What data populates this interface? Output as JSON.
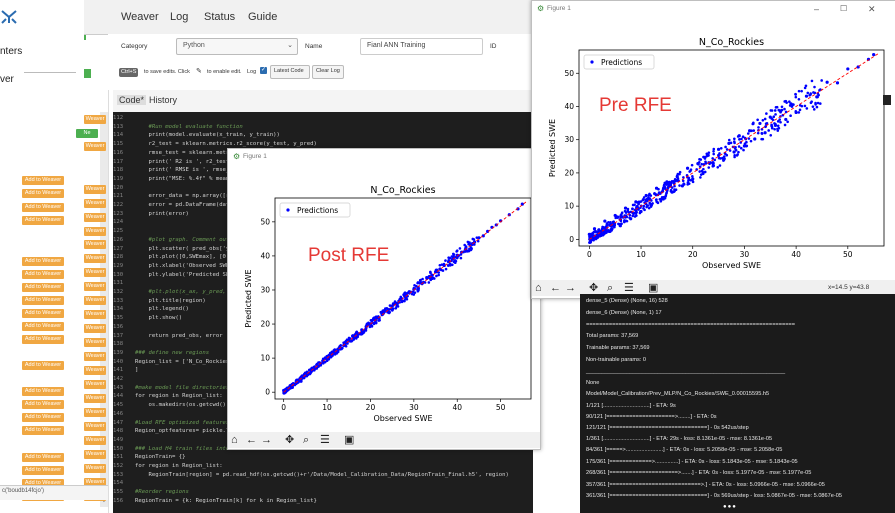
{
  "left_panel": {
    "items": [
      "nters",
      "ver"
    ],
    "status_text": "c('boudb14fcjo')"
  },
  "nav": {
    "items": [
      "Weaver",
      "Log",
      "Status",
      "Guide"
    ]
  },
  "form": {
    "category_label": "Category",
    "category_value": "Python",
    "name_label": "Name",
    "name_value": "Fianl ANN Training",
    "id_label": "ID",
    "shortcut": "Ctrl+S",
    "save_hint": "to save edits. Click",
    "enable_hint": "to enable edit.",
    "log_label": "Log",
    "latest_code_btn": "Latest Code",
    "clear_log_btn": "Clear Log"
  },
  "code_tabs": {
    "code": "Code*",
    "history": "History"
  },
  "code_lines": [
    {
      "n": "112",
      "t": ""
    },
    {
      "n": "113",
      "t": "    #Run model evaluate function",
      "c": "cm"
    },
    {
      "n": "114",
      "t": "    print(model.evaluate(x_train, y_train))"
    },
    {
      "n": "115",
      "t": "    r2_test = sklearn.metrics.r2_score(y_test, y_pred)"
    },
    {
      "n": "116",
      "t": "    rmse_test = sklearn.metrics"
    },
    {
      "n": "117",
      "t": "    print(' R2 is ', r2_test"
    },
    {
      "n": "118",
      "t": "    print(' RMSE is ', rmse_"
    },
    {
      "n": "119",
      "t": "    print(\"MSE: %.4f\" % mean_"
    },
    {
      "n": "120",
      "t": ""
    },
    {
      "n": "121",
      "t": "    error_data = np.array([r"
    },
    {
      "n": "122",
      "t": "    error = pd.DataFrame(data"
    },
    {
      "n": "123",
      "t": "    print(error)"
    },
    {
      "n": "124",
      "t": ""
    },
    {
      "n": "125",
      "t": ""
    },
    {
      "n": "126",
      "t": "    #plot graph. Comment out",
      "c": "cm"
    },
    {
      "n": "127",
      "t": "    plt.scatter( pred_obs['y_"
    },
    {
      "n": "128",
      "t": "    plt.plot([0,SWEmax], [0,"
    },
    {
      "n": "129",
      "t": "    plt.xlabel('Observed SWE')"
    },
    {
      "n": "130",
      "t": "    plt.ylabel('Predicted SWE"
    },
    {
      "n": "131",
      "t": ""
    },
    {
      "n": "132",
      "t": "    #plt.plot(x_ax, y_pred,",
      "c": "cm"
    },
    {
      "n": "133",
      "t": "    plt.title(region)"
    },
    {
      "n": "134",
      "t": "    plt.legend()"
    },
    {
      "n": "135",
      "t": "    plt.show()"
    },
    {
      "n": "136",
      "t": ""
    },
    {
      "n": "137",
      "t": "    return pred_obs, error"
    },
    {
      "n": "138",
      "t": ""
    },
    {
      "n": "139",
      "t": "### define new regions",
      "c": "cm"
    },
    {
      "n": "140",
      "t": "Region_list = ['N_Co_Rockies'"
    },
    {
      "n": "141",
      "t": "]"
    },
    {
      "n": "142",
      "t": ""
    },
    {
      "n": "143",
      "t": "#make model file directories",
      "c": "cm"
    },
    {
      "n": "144",
      "t": "for region in Region_list:"
    },
    {
      "n": "145",
      "t": "    os.makedirs(os.getcwd()"
    },
    {
      "n": "146",
      "t": ""
    },
    {
      "n": "147",
      "t": "#Load RFE optimized features",
      "c": "cm"
    },
    {
      "n": "148",
      "t": "Region_optfeatures= pickle.l"
    },
    {
      "n": "149",
      "t": ""
    },
    {
      "n": "150",
      "t": "### Load H4 train files into",
      "c": "cm"
    },
    {
      "n": "151",
      "t": "RegionTrain= {}"
    },
    {
      "n": "152",
      "t": "for region in Region_list:"
    },
    {
      "n": "153",
      "t": "    RegionTrain[region] = pd.read_hdf(os.getcwd()+r'/Data/Model_Calibration_Data/RegionTrain_Final.h5', region)"
    },
    {
      "n": "154",
      "t": ""
    },
    {
      "n": "155",
      "t": "#Reorder regions",
      "c": "cm"
    },
    {
      "n": "156",
      "t": "RegionTrain = {k: RegionTrain[k] for k in Region_list}"
    }
  ],
  "weaver_label": "Add to Weaver",
  "weaver_short": "Weaver",
  "new_badge": "Ne",
  "figure_post": {
    "window_title": "Figure 1",
    "title": "N_Co_Rockies",
    "overlay": "Post RFE",
    "legend": "Predictions",
    "xlabel": "Observed SWE",
    "ylabel": "Predicted SWE",
    "coords": ""
  },
  "figure_pre": {
    "window_title": "Figure 1",
    "title": "N_Co_Rockies",
    "overlay": "Pre RFE",
    "legend": "Predictions",
    "xlabel": "Observed SWE",
    "ylabel": "Predicted SWE",
    "coords": "x=14.5 y=43.8"
  },
  "chart_data": [
    {
      "type": "scatter",
      "title": "N_Co_Rockies",
      "xlabel": "Observed SWE",
      "ylabel": "Predicted SWE",
      "xlim": [
        -2,
        57
      ],
      "ylim": [
        -2,
        57
      ],
      "xticks": [
        0,
        10,
        20,
        30,
        40,
        50
      ],
      "yticks": [
        0,
        10,
        20,
        30,
        40,
        50
      ],
      "legend": "Predictions",
      "legend_position": "upper-left",
      "series_color": "#0000ff",
      "reference_line": {
        "x": [
          0,
          56
        ],
        "y": [
          0,
          56
        ],
        "color": "#ff0000",
        "style": "dashed"
      },
      "points": [
        [
          0,
          0.5
        ],
        [
          1,
          1.2
        ],
        [
          2,
          1.4
        ],
        [
          3,
          3.5
        ],
        [
          4,
          3.2
        ],
        [
          5,
          5.6
        ],
        [
          6,
          5.4
        ],
        [
          7,
          7.3
        ],
        [
          8,
          7.6
        ],
        [
          9,
          9.2
        ],
        [
          10,
          10.5
        ],
        [
          11,
          10.8
        ],
        [
          12,
          12.1
        ],
        [
          13,
          13.4
        ],
        [
          14,
          13.8
        ],
        [
          15,
          15.2
        ],
        [
          16,
          16.1
        ],
        [
          17,
          16.9
        ],
        [
          18,
          18.3
        ],
        [
          19,
          19.2
        ],
        [
          20,
          20.1
        ],
        [
          21,
          21.3
        ],
        [
          22,
          21.8
        ],
        [
          23,
          23.2
        ],
        [
          24,
          24.1
        ],
        [
          25,
          25.3
        ],
        [
          26,
          25.9
        ],
        [
          27,
          27.2
        ],
        [
          28,
          28.1
        ],
        [
          29,
          29.3
        ],
        [
          30,
          30.2
        ],
        [
          31,
          30.8
        ],
        [
          32,
          32.1
        ],
        [
          33,
          33.4
        ],
        [
          34,
          33.9
        ],
        [
          35,
          35.3
        ],
        [
          36,
          36.1
        ],
        [
          37,
          37.2
        ],
        [
          38,
          38.3
        ],
        [
          39,
          39.1
        ],
        [
          40,
          40.2
        ],
        [
          41,
          41.1
        ],
        [
          42,
          42.3
        ],
        [
          43,
          43.2
        ],
        [
          44,
          44.1
        ],
        [
          45,
          45.3
        ],
        [
          46,
          45.9
        ],
        [
          47,
          47.2
        ],
        [
          48,
          48.4
        ],
        [
          49,
          49.1
        ],
        [
          50,
          50.3
        ],
        [
          52,
          52.1
        ],
        [
          54,
          53.8
        ],
        [
          55,
          55.2
        ]
      ]
    },
    {
      "type": "scatter",
      "title": "N_Co_Rockies",
      "xlabel": "Observed SWE",
      "ylabel": "Predicted SWE",
      "xlim": [
        -2,
        57
      ],
      "ylim": [
        -2,
        57
      ],
      "xticks": [
        0,
        10,
        20,
        30,
        40,
        50
      ],
      "yticks": [
        0,
        10,
        20,
        30,
        40,
        50
      ],
      "legend": "Predictions",
      "legend_position": "upper-left",
      "series_color": "#0000ff",
      "reference_line": {
        "x": [
          0,
          56
        ],
        "y": [
          0,
          56
        ],
        "color": "#ff0000",
        "style": "dashed"
      },
      "points": [
        [
          0,
          1.5
        ],
        [
          1,
          3.2
        ],
        [
          2,
          1.0
        ],
        [
          3,
          5.5
        ],
        [
          4,
          2.4
        ],
        [
          5,
          7.2
        ],
        [
          6,
          4.1
        ],
        [
          7,
          9.4
        ],
        [
          8,
          6.2
        ],
        [
          9,
          11.3
        ],
        [
          10,
          8.4
        ],
        [
          11,
          13.2
        ],
        [
          12,
          10.3
        ],
        [
          13,
          15.4
        ],
        [
          14,
          12.1
        ],
        [
          15,
          17.3
        ],
        [
          16,
          14.2
        ],
        [
          17,
          18.9
        ],
        [
          18,
          16.1
        ],
        [
          19,
          21.4
        ],
        [
          20,
          18.2
        ],
        [
          21,
          22.8
        ],
        [
          22,
          20.1
        ],
        [
          23,
          25.3
        ],
        [
          24,
          22.2
        ],
        [
          25,
          27.1
        ],
        [
          26,
          24.0
        ],
        [
          27,
          28.9
        ],
        [
          28,
          26.3
        ],
        [
          29,
          31.2
        ],
        [
          30,
          28.1
        ],
        [
          31,
          32.7
        ],
        [
          32,
          30.2
        ],
        [
          33,
          34.9
        ],
        [
          34,
          32.1
        ],
        [
          35,
          36.8
        ],
        [
          36,
          34.3
        ],
        [
          37,
          38.7
        ],
        [
          38,
          36.1
        ],
        [
          39,
          40.8
        ],
        [
          40,
          38.2
        ],
        [
          42,
          43.1
        ],
        [
          44,
          42.9
        ],
        [
          46,
          47.3
        ],
        [
          48,
          47.1
        ],
        [
          50,
          51.3
        ],
        [
          52,
          51.9
        ],
        [
          54,
          54.2
        ],
        [
          55,
          55.6
        ]
      ]
    }
  ],
  "terminal_lines": [
    "dense_5 (Dense) (None, 16) 528",
    "dense_6 (Dense) (None, 1) 17",
    "================================================================",
    "Total params: 37,569",
    "Trainable params: 37,569",
    "Non-trainable params: 0",
    "________________________________________________________________",
    "None",
    "Model/Model_Calibration/Prev_MLP/N_Co_Rockies/SWE_0.00015595.h5",
    "1/121 [..............................] - ETA: 9s",
    "90/121 [=====================>........] - ETA: 0s",
    "121/121 [==============================] - 0s 542us/step",
    "1/361 [..............................] - ETA: 29s - loss: 8.1361e-05 - mse: 8.1361e-05",
    "84/361 [=====>........................] - ETA: 0s - loss: 5.2058e-05 - mse: 5.2058e-05",
    "175/361 [=============>...............] - ETA: 0s - loss: 5.1843e-05 - mse: 5.1843e-05",
    "268/361 [=====================>.......] - ETA: 0s - loss: 5.1977e-05 - mse: 5.1977e-05",
    "357/361 [============================>.] - ETA: 0s - loss: 5.0966e-05 - mse: 5.0966e-05",
    "361/361 [==============================] - 0s 569us/step - loss: 5.0867e-05 - mse: 5.0867e-05"
  ]
}
